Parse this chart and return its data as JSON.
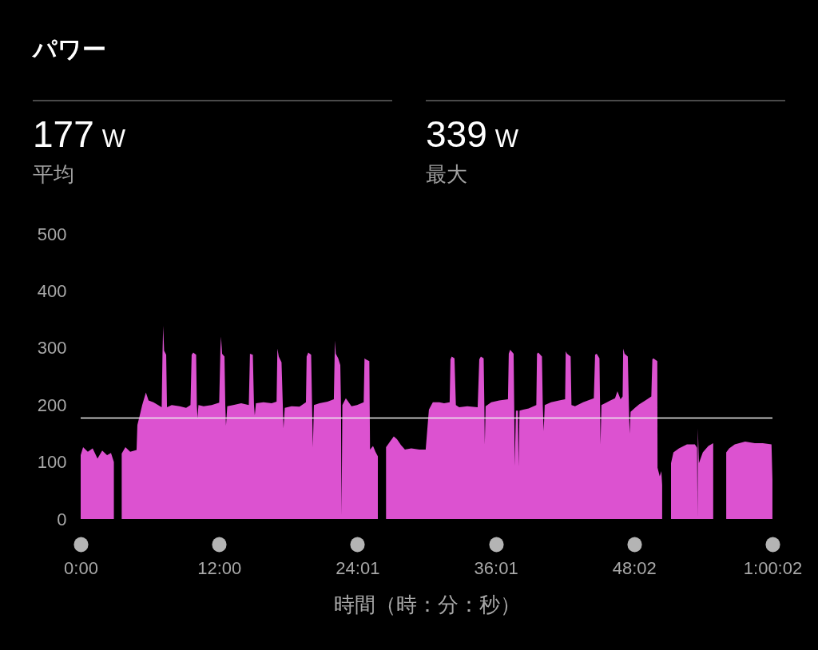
{
  "chart_data": {
    "type": "area",
    "title": "パワー",
    "annotations": [
      "177 W",
      "平均",
      "339 W",
      "最大"
    ],
    "xlabel": "時間（時：分：秒）",
    "color": "#dc52d0",
    "xlim": [
      0,
      60.033
    ],
    "xticks": [
      {
        "value": 0,
        "label": "0:00"
      },
      {
        "value": 12.007,
        "label": "12:00"
      },
      {
        "value": 24.013,
        "label": "24:01"
      },
      {
        "value": 36.02,
        "label": "36:01"
      },
      {
        "value": 48.027,
        "label": "48:02"
      },
      {
        "value": 60.033,
        "label": "1:00:02"
      }
    ],
    "ylim": [
      0,
      500
    ],
    "yticks": [
      0,
      100,
      200,
      300,
      400,
      500
    ],
    "ref_lines": [
      {
        "axis": "y",
        "value": 177,
        "color": "#eeeeee"
      }
    ],
    "x": [
      0,
      0.21,
      0.62,
      1.04,
      1.46,
      1.87,
      2.29,
      2.63,
      2.88,
      3.22,
      3.56,
      3.88,
      4.3,
      4.85,
      4.92,
      5.13,
      5.34,
      5.66,
      5.89,
      6.31,
      6.72,
      7.03,
      7.1,
      7.16,
      7.24,
      7.42,
      7.49,
      7.9,
      8.59,
      9.15,
      9.53,
      9.63,
      9.77,
      10.02,
      10.08,
      10.14,
      10.22,
      10.67,
      11.37,
      12.02,
      12.13,
      12.18,
      12.27,
      12.48,
      12.55,
      12.61,
      12.72,
      13.24,
      13.93,
      14.59,
      14.69,
      14.94,
      15.04,
      15.11,
      15.21,
      15.87,
      16.57,
      17.0,
      17.07,
      17.19,
      17.43,
      17.54,
      17.6,
      17.71,
      18.3,
      18.99,
      19.55,
      19.61,
      19.75,
      20.0,
      20.08,
      20.15,
      20.24,
      20.72,
      21.42,
      21.97,
      22.06,
      22.14,
      22.35,
      22.53,
      22.59,
      22.64,
      22.71,
      23.01,
      23.5,
      23.98,
      24.56,
      24.63,
      24.74,
      25.05,
      25.11,
      25.37,
      25.58,
      25.79,
      26.13,
      26.5,
      26.82,
      27.17,
      27.45,
      27.79,
      28.14,
      28.69,
      29.39,
      29.94,
      30.15,
      30.22,
      30.56,
      31.12,
      31.54,
      32.02,
      32.09,
      32.2,
      32.44,
      32.56,
      32.85,
      33.55,
      34.45,
      34.59,
      34.73,
      34.97,
      35.03,
      35.07,
      35.14,
      35.63,
      36.32,
      37.08,
      37.15,
      37.27,
      37.57,
      37.62,
      37.67,
      37.77,
      37.95,
      38.0,
      38.08,
      38.4,
      38.88,
      39.54,
      39.6,
      39.71,
      40.03,
      40.1,
      40.18,
      40.27,
      40.82,
      41.52,
      42.04,
      42.09,
      42.21,
      42.52,
      42.59,
      42.9,
      43.6,
      44.53,
      44.64,
      44.78,
      45.02,
      45.07,
      45.11,
      45.19,
      45.67,
      46.37,
      46.58,
      46.85,
      47.03,
      47.08,
      47.2,
      47.48,
      47.57,
      47.64,
      47.72,
      48.1,
      48.45,
      49.0,
      49.52,
      49.61,
      49.7,
      50.04,
      50.06,
      50.25,
      50.39,
      50.46,
      50.81,
      51.23,
      51.44,
      51.92,
      52.61,
      53.3,
      53.49,
      53.53,
      53.56,
      53.65,
      53.99,
      54.47,
      54.89,
      55.45,
      56.02,
      56.28,
      56.76,
      57.66,
      58.5,
      59.19,
      59.95,
      60.03
    ],
    "values": [
      112,
      126,
      118,
      124,
      106,
      120,
      112,
      116,
      100,
      null,
      115,
      126,
      118,
      121,
      165,
      182,
      200,
      222,
      208,
      205,
      200,
      196,
      290,
      339,
      295,
      288,
      196,
      200,
      198,
      195,
      200,
      288,
      292,
      288,
      200,
      178,
      200,
      198,
      200,
      204,
      300,
      320,
      290,
      285,
      200,
      164,
      198,
      200,
      203,
      200,
      290,
      288,
      200,
      182,
      203,
      205,
      203,
      206,
      299,
      285,
      275,
      200,
      159,
      195,
      198,
      197,
      205,
      285,
      292,
      288,
      200,
      126,
      200,
      203,
      206,
      210,
      313,
      290,
      282,
      270,
      200,
      5,
      200,
      212,
      198,
      200,
      205,
      282,
      280,
      277,
      122,
      128,
      118,
      110,
      null,
      126,
      135,
      145,
      140,
      130,
      122,
      124,
      122,
      122,
      175,
      192,
      205,
      205,
      203,
      205,
      280,
      285,
      282,
      200,
      196,
      198,
      196,
      280,
      285,
      282,
      200,
      131,
      198,
      205,
      208,
      210,
      290,
      297,
      290,
      200,
      93,
      190,
      190,
      92,
      190,
      192,
      194,
      200,
      290,
      292,
      285,
      200,
      154,
      200,
      205,
      208,
      210,
      294,
      290,
      285,
      200,
      198,
      205,
      212,
      288,
      290,
      282,
      200,
      131,
      200,
      205,
      212,
      224,
      210,
      215,
      299,
      290,
      285,
      200,
      150,
      188,
      195,
      201,
      208,
      215,
      280,
      282,
      277,
      90,
      75,
      84,
      60,
      null,
      98,
      117,
      124,
      131,
      131,
      125,
      2,
      159,
      98,
      117,
      128,
      133,
      null,
      117,
      124,
      131,
      136,
      133,
      133,
      131,
      70
    ]
  }
}
